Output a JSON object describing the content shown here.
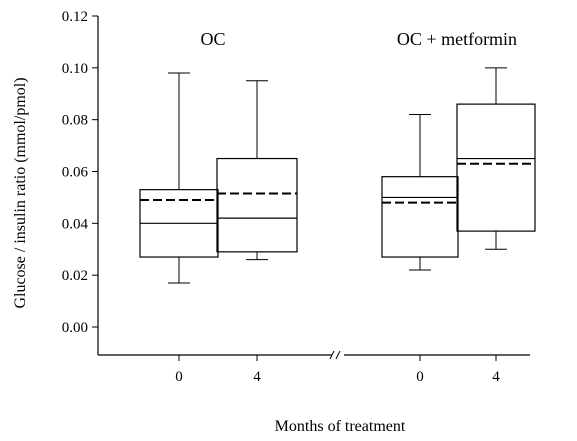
{
  "chart_data": {
    "type": "box",
    "ylabel": "Glucose / insulin ratio (mmol/pmol)",
    "xlabel": "Months of treatment",
    "ylim": [
      -0.01,
      0.12
    ],
    "yticks": [
      "0.00",
      "0.02",
      "0.04",
      "0.06",
      "0.08",
      "0.10",
      "0.12"
    ],
    "y_axis_break": true,
    "x_axis_break": true,
    "groups": [
      {
        "name": "OC",
        "boxes": [
          {
            "x": "0",
            "min": 0.017,
            "q1": 0.027,
            "median": 0.04,
            "mean": 0.049,
            "q3": 0.053,
            "max": 0.098
          },
          {
            "x": "4",
            "min": 0.026,
            "q1": 0.029,
            "median": 0.042,
            "mean": 0.0515,
            "q3": 0.065,
            "max": 0.095
          }
        ]
      },
      {
        "name": "OC + metformin",
        "boxes": [
          {
            "x": "0",
            "min": 0.022,
            "q1": 0.027,
            "median": 0.05,
            "mean": 0.048,
            "q3": 0.058,
            "max": 0.082
          },
          {
            "x": "4",
            "min": 0.03,
            "q1": 0.037,
            "median": 0.065,
            "mean": 0.063,
            "q3": 0.086,
            "max": 0.1
          }
        ]
      }
    ],
    "legend": "none",
    "grid": false
  }
}
